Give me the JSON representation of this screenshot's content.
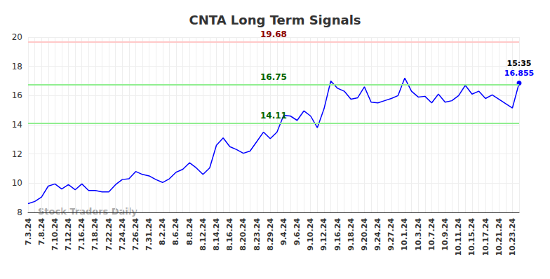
{
  "chart_data": {
    "type": "line",
    "title": "CNTA Long Term Signals",
    "watermark": "Stock Traders Daily",
    "categories": [
      "7.3.24",
      null,
      "7.8.24",
      null,
      "7.10.24",
      null,
      "7.12.24",
      null,
      "7.16.24",
      null,
      "7.18.24",
      null,
      "7.22.24",
      null,
      "7.24.24",
      null,
      "7.26.24",
      null,
      "7.31.24",
      null,
      "8.2.24",
      null,
      "8.6.24",
      null,
      "8.8.24",
      null,
      "8.12.24",
      null,
      "8.14.24",
      null,
      "8.16.24",
      null,
      "8.20.24",
      null,
      "8.23.24",
      null,
      "8.29.24",
      null,
      "9.4.24",
      null,
      "9.6.24",
      null,
      "9.10.24",
      null,
      "9.12.24",
      null,
      "9.16.24",
      null,
      "9.18.24",
      null,
      "9.20.24",
      null,
      "9.24.24",
      null,
      "9.27.24",
      null,
      "10.1.24",
      null,
      "10.3.24",
      null,
      "10.7.24",
      null,
      "10.9.24",
      null,
      "10.11.24",
      null,
      "10.15.24",
      null,
      "10.17.24",
      null,
      "10.21.24",
      null,
      "10.23.24",
      null
    ],
    "values": [
      8.6,
      8.75,
      9.05,
      9.8,
      9.95,
      9.6,
      9.9,
      9.55,
      9.95,
      9.5,
      9.5,
      9.4,
      9.4,
      9.9,
      10.25,
      10.3,
      10.8,
      10.6,
      10.5,
      10.25,
      10.05,
      10.3,
      10.75,
      10.95,
      11.4,
      11.05,
      10.6,
      11.05,
      12.6,
      13.1,
      12.5,
      12.3,
      12.05,
      12.2,
      12.85,
      13.5,
      13.05,
      13.5,
      14.65,
      14.6,
      14.3,
      14.95,
      14.6,
      13.8,
      15.1,
      17.0,
      16.5,
      16.3,
      15.75,
      15.85,
      16.6,
      15.55,
      15.5,
      15.65,
      15.8,
      16.0,
      17.2,
      16.3,
      15.9,
      15.95,
      15.5,
      16.1,
      15.55,
      15.65,
      16.0,
      16.7,
      16.1,
      16.3,
      15.8,
      16.05,
      15.75,
      15.45,
      15.15,
      16.855
    ],
    "color": "#0000ff",
    "ylim": [
      8,
      20
    ],
    "yticks": [
      8,
      10,
      12,
      14,
      16,
      18,
      20
    ],
    "grid": true,
    "reference_lines": [
      {
        "value": 19.68,
        "label": "19.68",
        "color": "#ffc8c8",
        "label_color": "#8b0000"
      },
      {
        "value": 16.75,
        "label": "16.75",
        "color": "#90ee90",
        "label_color": "#006400"
      },
      {
        "value": 14.11,
        "label": "14.11",
        "color": "#90ee90",
        "label_color": "#006400"
      }
    ],
    "last_point": {
      "time": "15:35",
      "label": "16.855",
      "time_color": "#000000",
      "label_color": "#0000ff"
    }
  }
}
